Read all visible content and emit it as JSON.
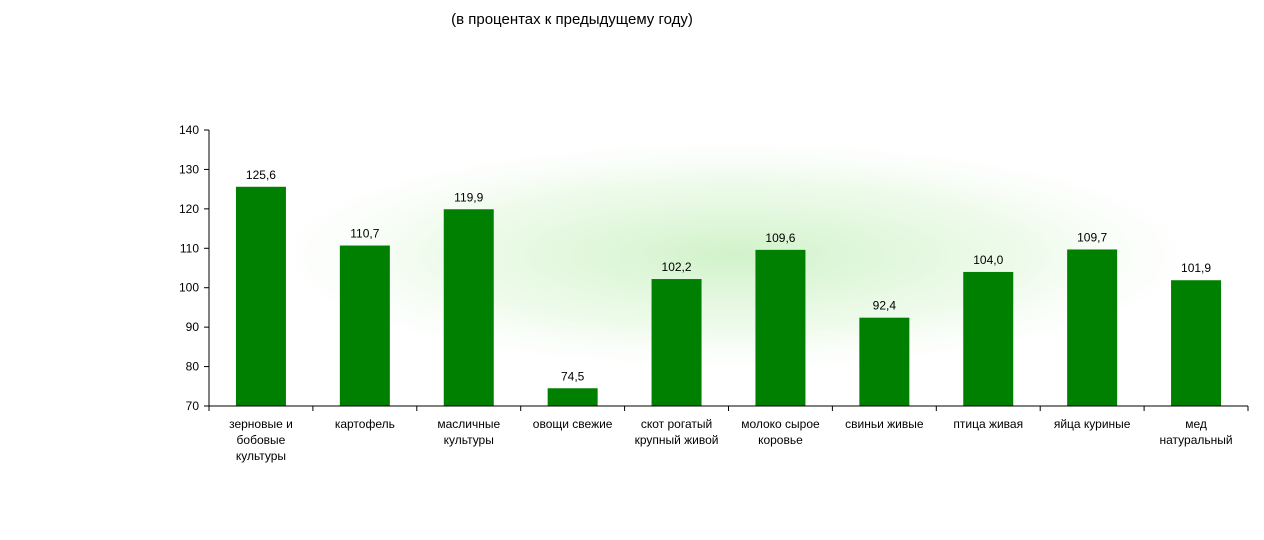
{
  "subtitle": "(в процентах к предыдущему году)",
  "chart_data": {
    "type": "bar",
    "categories": [
      "зерновые и бобовые культуры",
      "картофель",
      "масличные культуры",
      "овощи свежие",
      "скот рогатый крупный живой",
      "молоко сырое коровье",
      "свиньи живые",
      "птица живая",
      "яйца куриные",
      "мед натуральный"
    ],
    "category_lines": [
      [
        "зерновые и",
        "бобовые",
        "культуры"
      ],
      [
        "картофель"
      ],
      [
        "масличные",
        "культуры"
      ],
      [
        "овощи свежие"
      ],
      [
        "скот рогатый",
        "крупный живой"
      ],
      [
        "молоко сырое",
        "коровье"
      ],
      [
        "свиньи живые"
      ],
      [
        "птица живая"
      ],
      [
        "яйца куриные"
      ],
      [
        "мед",
        "натуральный"
      ]
    ],
    "values": [
      125.6,
      110.7,
      119.9,
      74.5,
      102.2,
      109.6,
      92.4,
      104.0,
      109.7,
      101.9
    ],
    "value_labels": [
      "125,6",
      "110,7",
      "119,9",
      "74,5",
      "102,2",
      "109,6",
      "92,4",
      "104,0",
      "109,7",
      "101,9"
    ],
    "ylim": [
      70,
      140
    ],
    "yticks": [
      70,
      80,
      90,
      100,
      110,
      120,
      130,
      140
    ],
    "bar_color": "#008000",
    "grid": false,
    "legend": "none"
  }
}
